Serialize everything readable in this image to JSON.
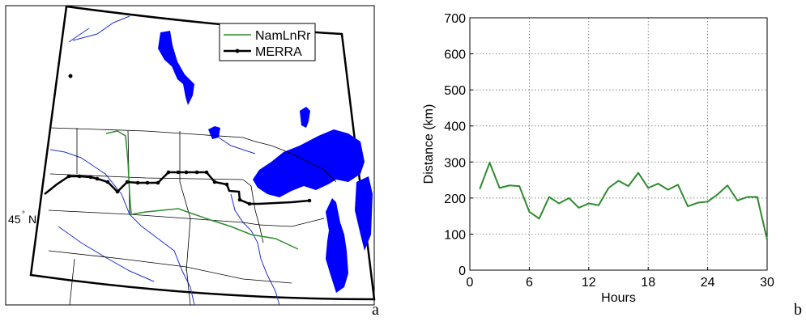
{
  "panel_labels": {
    "a": "a",
    "b": "b"
  },
  "map": {
    "legend": [
      {
        "name": "NamLnRr",
        "color": "#2e8b2e"
      },
      {
        "name": "MERRA",
        "color": "#000000"
      }
    ],
    "lat_label": "45",
    "lat_degree": "°",
    "lat_hemi": "N"
  },
  "chart_data": {
    "type": "line",
    "xlabel": "Hours",
    "ylabel": "Distance (km)",
    "xlim": [
      0,
      30
    ],
    "ylim": [
      0,
      700
    ],
    "xticks": [
      0,
      6,
      12,
      18,
      24,
      30
    ],
    "yticks": [
      0,
      100,
      200,
      300,
      400,
      500,
      600,
      700
    ],
    "grid": true,
    "series": [
      {
        "color": "#2e8b2e",
        "x": [
          1,
          2,
          3,
          4,
          5,
          6,
          7,
          8,
          9,
          10,
          11,
          12,
          13,
          14,
          15,
          16,
          17,
          18,
          19,
          20,
          21,
          22,
          23,
          24,
          25,
          26,
          27,
          28,
          29,
          30
        ],
        "values": [
          225,
          298,
          228,
          235,
          233,
          162,
          143,
          203,
          185,
          200,
          173,
          185,
          180,
          228,
          248,
          233,
          270,
          228,
          240,
          223,
          237,
          177,
          187,
          190,
          210,
          235,
          193,
          203,
          203,
          85
        ]
      }
    ]
  }
}
